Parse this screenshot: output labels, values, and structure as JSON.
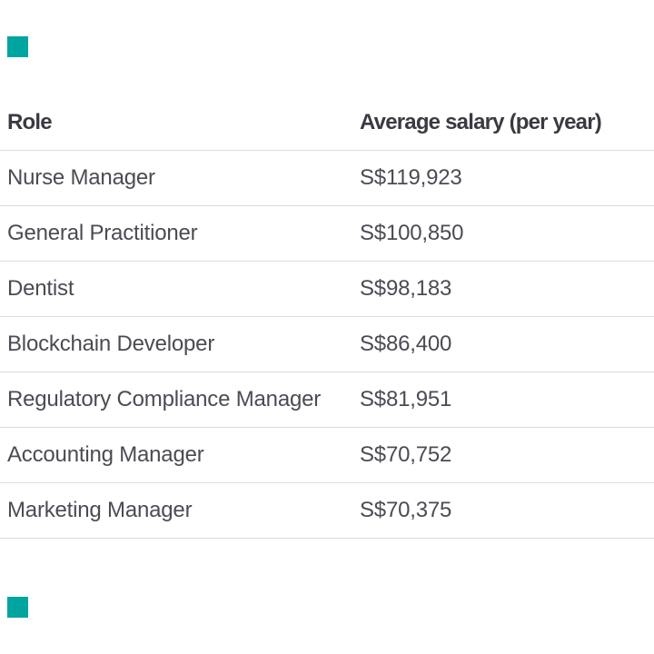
{
  "colors": {
    "header_text": "#3a3a42",
    "body_text": "#4b4b54",
    "divider": "#dcdcdc",
    "marker_teal": "#00a5a0",
    "page_background": "#ffffff"
  },
  "markers": {
    "top_left_square": "teal decorative square",
    "bottom_left_square": "teal decorative square"
  },
  "table": {
    "headers": {
      "role": "Role",
      "salary": "Average salary (per year)"
    },
    "rows": [
      {
        "role": "Nurse Manager",
        "salary": "S$119,923"
      },
      {
        "role": "General Practitioner",
        "salary": "S$100,850"
      },
      {
        "role": "Dentist",
        "salary": "S$98,183"
      },
      {
        "role": "Blockchain Developer",
        "salary": "S$86,400"
      },
      {
        "role": "Regulatory Compliance Manager",
        "salary": "S$81,951"
      },
      {
        "role": "Accounting Manager",
        "salary": "S$70,752"
      },
      {
        "role": "Marketing Manager",
        "salary": "S$70,375"
      }
    ]
  },
  "chart_data": {
    "type": "table",
    "title": "",
    "columns": [
      "Role",
      "Average salary (per year)"
    ],
    "categories": [
      "Nurse Manager",
      "General Practitioner",
      "Dentist",
      "Blockchain Developer",
      "Regulatory Compliance Manager",
      "Accounting Manager",
      "Marketing Manager"
    ],
    "values": [
      119923,
      100850,
      98183,
      86400,
      81951,
      70752,
      70375
    ],
    "currency": "S$"
  }
}
